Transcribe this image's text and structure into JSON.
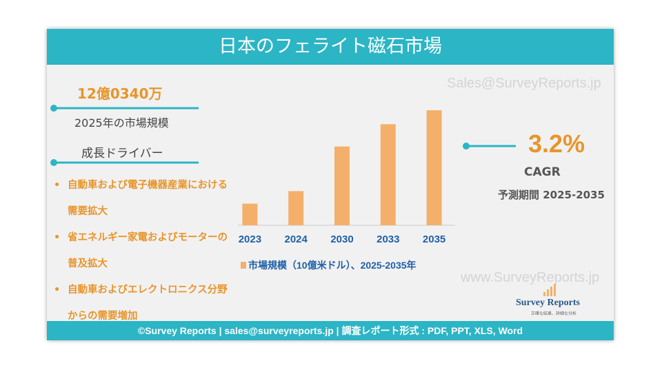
{
  "header": {
    "title": "日本のフェライト磁石市場"
  },
  "watermarks": [
    "Sales@SurveyReports.jp",
    "www.SurveyReports.jp"
  ],
  "market_size": {
    "value": "12億0340万",
    "label": "2025年の市場規模"
  },
  "drivers": {
    "title": "成長ドライバー",
    "items": [
      "自動車および電子機器産業における需要拡大",
      "省エネルギー家電およびモーターの普及拡大",
      "自動車およびエレクトロニクス分野からの需要増加"
    ]
  },
  "cagr": {
    "value": "3.2%",
    "label": "CAGR",
    "period": "予測期間 2025-2035"
  },
  "logo": {
    "name": "Survey Reports",
    "tagline": "正確な結果、詳細な分析"
  },
  "footer": "©Survey Reports | sales@surveyreports.jp |  調査レポート形式 : PDF, PPT, XLS, Word",
  "chart_data": {
    "type": "bar",
    "categories": [
      "2023",
      "2024",
      "2030",
      "2033",
      "2035"
    ],
    "series": [
      {
        "name": "市場規模（10億米ドル）、2025-2035年",
        "color": "#f4b06a",
        "values": [
          0.31,
          0.49,
          1.13,
          1.45,
          1.65
        ]
      }
    ],
    "ylim": [
      0,
      1.7
    ]
  }
}
